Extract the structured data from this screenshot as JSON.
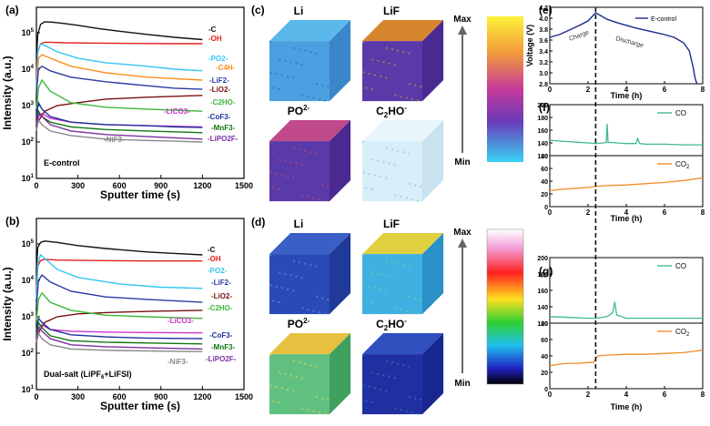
{
  "panel_labels": {
    "a": "(a)",
    "b": "(b)",
    "c": "(c)",
    "d": "(d)",
    "e": "(e)",
    "f": "(f)",
    "g": "(g)"
  },
  "colors": {
    "C": "#111111",
    "OH": "#e0201b",
    "PO2": "#33c4f0",
    "C4H": "#ff8c1a",
    "LiF2": "#2b3aa0",
    "LiO2": "#7a1010",
    "C2HO": "#3cb83c",
    "LiCO3": "#cc33cc",
    "CoF3": "#1e2f9a",
    "MnF3": "#117711",
    "LiPO2F": "#7a2fa0",
    "NiF3": "#888888",
    "econtrol": "#1a2a8c",
    "co": "#3fb893",
    "co2": "#f28c28"
  },
  "chart_data": [
    {
      "id": "a",
      "type": "line",
      "title": "E-control",
      "xlabel": "Sputter time (s)",
      "ylabel": "Intensity (a.u.)",
      "xlim": [
        0,
        1500
      ],
      "ylim": [
        10,
        500000
      ],
      "yscale": "log",
      "xticks": [
        "0",
        "300",
        "600",
        "900",
        "1200",
        "1500"
      ],
      "yticks": [
        "10^1",
        "10^2",
        "10^3",
        "10^4",
        "10^5"
      ],
      "series": [
        {
          "name": "-C",
          "key": "C",
          "x": [
            0,
            10,
            30,
            60,
            120,
            200,
            300,
            450,
            600,
            800,
            1000,
            1200
          ],
          "y": [
            20000,
            90000,
            170000,
            200000,
            195000,
            180000,
            160000,
            130000,
            110000,
            90000,
            75000,
            65000
          ]
        },
        {
          "name": "-OH",
          "key": "OH",
          "x": [
            0,
            10,
            30,
            60,
            100,
            200,
            400,
            700,
            1000,
            1200
          ],
          "y": [
            6000,
            30000,
            50000,
            55000,
            55000,
            53000,
            52000,
            51000,
            50000,
            50000
          ]
        },
        {
          "name": "-PO2-",
          "key": "PO2",
          "x": [
            0,
            10,
            30,
            60,
            150,
            300,
            500,
            800,
            1000,
            1200
          ],
          "y": [
            3000,
            30000,
            50000,
            45000,
            30000,
            20000,
            15000,
            12000,
            10000,
            9000
          ]
        },
        {
          "name": "-C4H-",
          "key": "C4H",
          "x": [
            0,
            15,
            40,
            100,
            250,
            500,
            800,
            1000,
            1200
          ],
          "y": [
            2000,
            20000,
            25000,
            20000,
            12000,
            8000,
            6000,
            5500,
            5000
          ]
        },
        {
          "name": "-LiF2-",
          "key": "LiF2",
          "x": [
            0,
            15,
            40,
            100,
            250,
            500,
            800,
            1000,
            1200
          ],
          "y": [
            2000,
            10000,
            12000,
            9000,
            6000,
            4500,
            3500,
            3000,
            2800
          ]
        },
        {
          "name": "-LiO2-",
          "key": "LiO2",
          "x": [
            0,
            20,
            60,
            150,
            300,
            500,
            800,
            1000,
            1200
          ],
          "y": [
            300,
            400,
            700,
            1000,
            1200,
            1500,
            1700,
            1800,
            1900
          ]
        },
        {
          "name": "-C2HO-",
          "key": "C2HO",
          "x": [
            0,
            15,
            40,
            100,
            250,
            500,
            800,
            1000,
            1200
          ],
          "y": [
            800,
            3000,
            5000,
            2500,
            1200,
            900,
            800,
            750,
            700
          ]
        },
        {
          "name": "-LiCO3-",
          "key": "LiCO3",
          "x": [
            0,
            15,
            40,
            100,
            250,
            500,
            800,
            1000,
            1200
          ],
          "y": [
            200,
            500,
            600,
            450,
            350,
            300,
            280,
            270,
            260
          ]
        },
        {
          "name": "-CoF3-",
          "key": "CoF3",
          "x": [
            0,
            15,
            40,
            100,
            250,
            500,
            800,
            1000,
            1200
          ],
          "y": [
            500,
            1200,
            800,
            500,
            350,
            300,
            280,
            260,
            250
          ]
        },
        {
          "name": "-MnF3-",
          "key": "MnF3",
          "x": [
            0,
            15,
            40,
            100,
            250,
            500,
            800,
            1000,
            1200
          ],
          "y": [
            300,
            700,
            500,
            350,
            260,
            220,
            200,
            190,
            180
          ]
        },
        {
          "name": "-LiPO2F-",
          "key": "LiPO2F",
          "x": [
            0,
            15,
            40,
            100,
            250,
            500,
            800,
            1000,
            1200
          ],
          "y": [
            300,
            600,
            500,
            300,
            200,
            160,
            140,
            130,
            120
          ]
        },
        {
          "name": "-NiF3-",
          "key": "NiF3",
          "x": [
            0,
            15,
            40,
            100,
            250,
            500,
            800,
            1000,
            1200
          ],
          "y": [
            200,
            400,
            300,
            200,
            150,
            120,
            110,
            105,
            100
          ]
        }
      ]
    },
    {
      "id": "b",
      "type": "line",
      "title": "Dual-salt (LiPF6+LiFSI)",
      "xlabel": "Sputter time (s)",
      "ylabel": "Intensity (a.u.)",
      "xlim": [
        0,
        1500
      ],
      "ylim": [
        10,
        500000
      ],
      "yscale": "log",
      "xticks": [
        "0",
        "300",
        "600",
        "900",
        "1200",
        "1500"
      ],
      "yticks": [
        "10^1",
        "10^2",
        "10^3",
        "10^4",
        "10^5"
      ],
      "series": [
        {
          "name": "-C",
          "key": "C",
          "x": [
            0,
            10,
            30,
            60,
            150,
            300,
            500,
            800,
            1000,
            1200
          ],
          "y": [
            20000,
            80000,
            110000,
            120000,
            110000,
            90000,
            75000,
            60000,
            55000,
            50000
          ]
        },
        {
          "name": "-OH",
          "key": "OH",
          "x": [
            0,
            10,
            30,
            60,
            150,
            400,
            800,
            1200
          ],
          "y": [
            5000,
            25000,
            35000,
            38000,
            36000,
            35000,
            34000,
            34000
          ]
        },
        {
          "name": "-PO2-",
          "key": "PO2",
          "x": [
            0,
            10,
            30,
            60,
            150,
            300,
            600,
            900,
            1200
          ],
          "y": [
            3000,
            30000,
            50000,
            40000,
            20000,
            12000,
            8000,
            6500,
            6000
          ]
        },
        {
          "name": "-LiF2-",
          "key": "LiF2",
          "x": [
            0,
            15,
            40,
            100,
            250,
            500,
            800,
            1200
          ],
          "y": [
            2000,
            10000,
            14000,
            9000,
            5000,
            3500,
            3000,
            2500
          ]
        },
        {
          "name": "-LiO2-",
          "key": "LiO2",
          "x": [
            0,
            20,
            60,
            150,
            300,
            500,
            800,
            1200
          ],
          "y": [
            200,
            400,
            700,
            1000,
            1200,
            1300,
            1400,
            1500
          ]
        },
        {
          "name": "-C2HO-",
          "key": "C2HO",
          "x": [
            0,
            15,
            40,
            100,
            250,
            500,
            800,
            1200
          ],
          "y": [
            800,
            3000,
            4500,
            2500,
            1500,
            1100,
            1000,
            900
          ]
        },
        {
          "name": "-LiCO3-",
          "key": "LiCO3",
          "x": [
            0,
            15,
            40,
            100,
            250,
            500,
            800,
            1200
          ],
          "y": [
            200,
            500,
            600,
            450,
            400,
            380,
            370,
            360
          ]
        },
        {
          "name": "-CoF3-",
          "key": "CoF3",
          "x": [
            0,
            15,
            40,
            100,
            250,
            500,
            800,
            1200
          ],
          "y": [
            400,
            900,
            700,
            450,
            320,
            280,
            260,
            250
          ]
        },
        {
          "name": "-MnF3-",
          "key": "MnF3",
          "x": [
            0,
            15,
            40,
            100,
            250,
            500,
            800,
            1200
          ],
          "y": [
            300,
            700,
            500,
            300,
            220,
            200,
            190,
            180
          ]
        },
        {
          "name": "-LiPO2F-",
          "key": "LiPO2F",
          "x": [
            0,
            15,
            40,
            100,
            250,
            500,
            800,
            1200
          ],
          "y": [
            250,
            500,
            400,
            250,
            170,
            150,
            140,
            130
          ]
        },
        {
          "name": "-NiF3-",
          "key": "NiF3",
          "x": [
            0,
            15,
            40,
            100,
            250,
            500,
            800,
            1200
          ],
          "y": [
            200,
            350,
            250,
            170,
            130,
            120,
            115,
            110
          ]
        }
      ]
    },
    {
      "id": "e",
      "type": "line",
      "xlabel": "Time (h)",
      "ylabel": "Voltage (V)",
      "xlim": [
        0,
        8
      ],
      "ylim": [
        2.8,
        4.2
      ],
      "xticks": [
        "0",
        "2",
        "4",
        "6",
        "8"
      ],
      "yticks": [
        "2.8",
        "3.0",
        "3.2",
        "3.4",
        "3.6",
        "3.8",
        "4.0",
        "4.2"
      ],
      "legend": "E-control",
      "annotations": [
        "Charge",
        "Discharge"
      ],
      "series": [
        {
          "name": "E-control",
          "key": "econtrol",
          "x": [
            0,
            0.5,
            1.0,
            1.5,
            2.0,
            2.4,
            3.0,
            3.5,
            4.0,
            4.5,
            5.0,
            5.5,
            6.0,
            6.5,
            7.0,
            7.3,
            7.5,
            7.6,
            7.7
          ],
          "y": [
            3.65,
            3.7,
            3.78,
            3.86,
            3.95,
            4.1,
            3.98,
            3.92,
            3.87,
            3.82,
            3.78,
            3.74,
            3.7,
            3.65,
            3.55,
            3.4,
            3.1,
            2.9,
            2.8
          ]
        }
      ]
    },
    {
      "id": "f",
      "type": "line",
      "xlabel": "Time (h)",
      "xlim": [
        0,
        8
      ],
      "xticks": [
        "0",
        "2",
        "4",
        "6",
        "8"
      ],
      "sub": [
        {
          "legend": "CO",
          "key": "co",
          "ylim": [
            120,
            200
          ],
          "yticks": [
            "120",
            "140",
            "160",
            "180",
            "200"
          ],
          "series": {
            "x": [
              0,
              0.5,
              1,
              1.5,
              2,
              2.4,
              2.8,
              2.95,
              3.0,
              3.05,
              3.5,
              4,
              4.5,
              4.6,
              4.7,
              5,
              6,
              7,
              8
            ],
            "y": [
              144,
              143,
              142,
              141,
              140,
              139,
              140,
              141,
              170,
              141,
              140,
              139,
              139,
              147,
              139,
              138,
              138,
              137,
              137
            ]
          }
        },
        {
          "legend": "CO2",
          "key": "co2",
          "ylim": [
            0,
            80
          ],
          "yticks": [
            "0",
            "20",
            "40",
            "60",
            "80"
          ],
          "series": {
            "x": [
              0,
              0.5,
              1,
              1.5,
              2,
              2.4,
              3,
              4,
              5,
              6,
              7,
              8
            ],
            "y": [
              25,
              27,
              28,
              29,
              30,
              32,
              33,
              34,
              36,
              38,
              41,
              45
            ]
          }
        }
      ]
    },
    {
      "id": "g",
      "type": "line",
      "xlabel": "Time (h)",
      "xlim": [
        0,
        8
      ],
      "xticks": [
        "0",
        "2",
        "4",
        "6",
        "8"
      ],
      "sub": [
        {
          "legend": "CO",
          "key": "co",
          "ylim": [
            120,
            200
          ],
          "yticks": [
            "120",
            "140",
            "160",
            "180",
            "200"
          ],
          "series": {
            "x": [
              0,
              1,
              2,
              2.4,
              3,
              3.3,
              3.4,
              3.5,
              4,
              5,
              6,
              7,
              8
            ],
            "y": [
              128,
              127,
              126,
              126,
              128,
              133,
              146,
              130,
              126,
              126,
              126,
              126,
              126
            ]
          }
        },
        {
          "legend": "CO2",
          "key": "co2",
          "ylim": [
            0,
            80
          ],
          "yticks": [
            "0",
            "20",
            "40",
            "60",
            "80"
          ],
          "series": {
            "x": [
              0,
              0.5,
              1,
              1.5,
              2,
              2.3,
              2.5,
              3,
              4,
              5,
              6,
              7,
              8
            ],
            "y": [
              28,
              30,
              31,
              31,
              32,
              32,
              40,
              41,
              42,
              42,
              43,
              44,
              47
            ]
          }
        }
      ]
    }
  ],
  "panel_c": {
    "cubes": [
      "Li",
      "LiF",
      "PO2-",
      "C2HO-"
    ],
    "scale_max": "Max",
    "scale_min": "Min"
  },
  "panel_d": {
    "cubes": [
      "Li",
      "LiF",
      "PO2-",
      "C2HO-"
    ],
    "scale_max": "Max",
    "scale_min": "Min"
  }
}
